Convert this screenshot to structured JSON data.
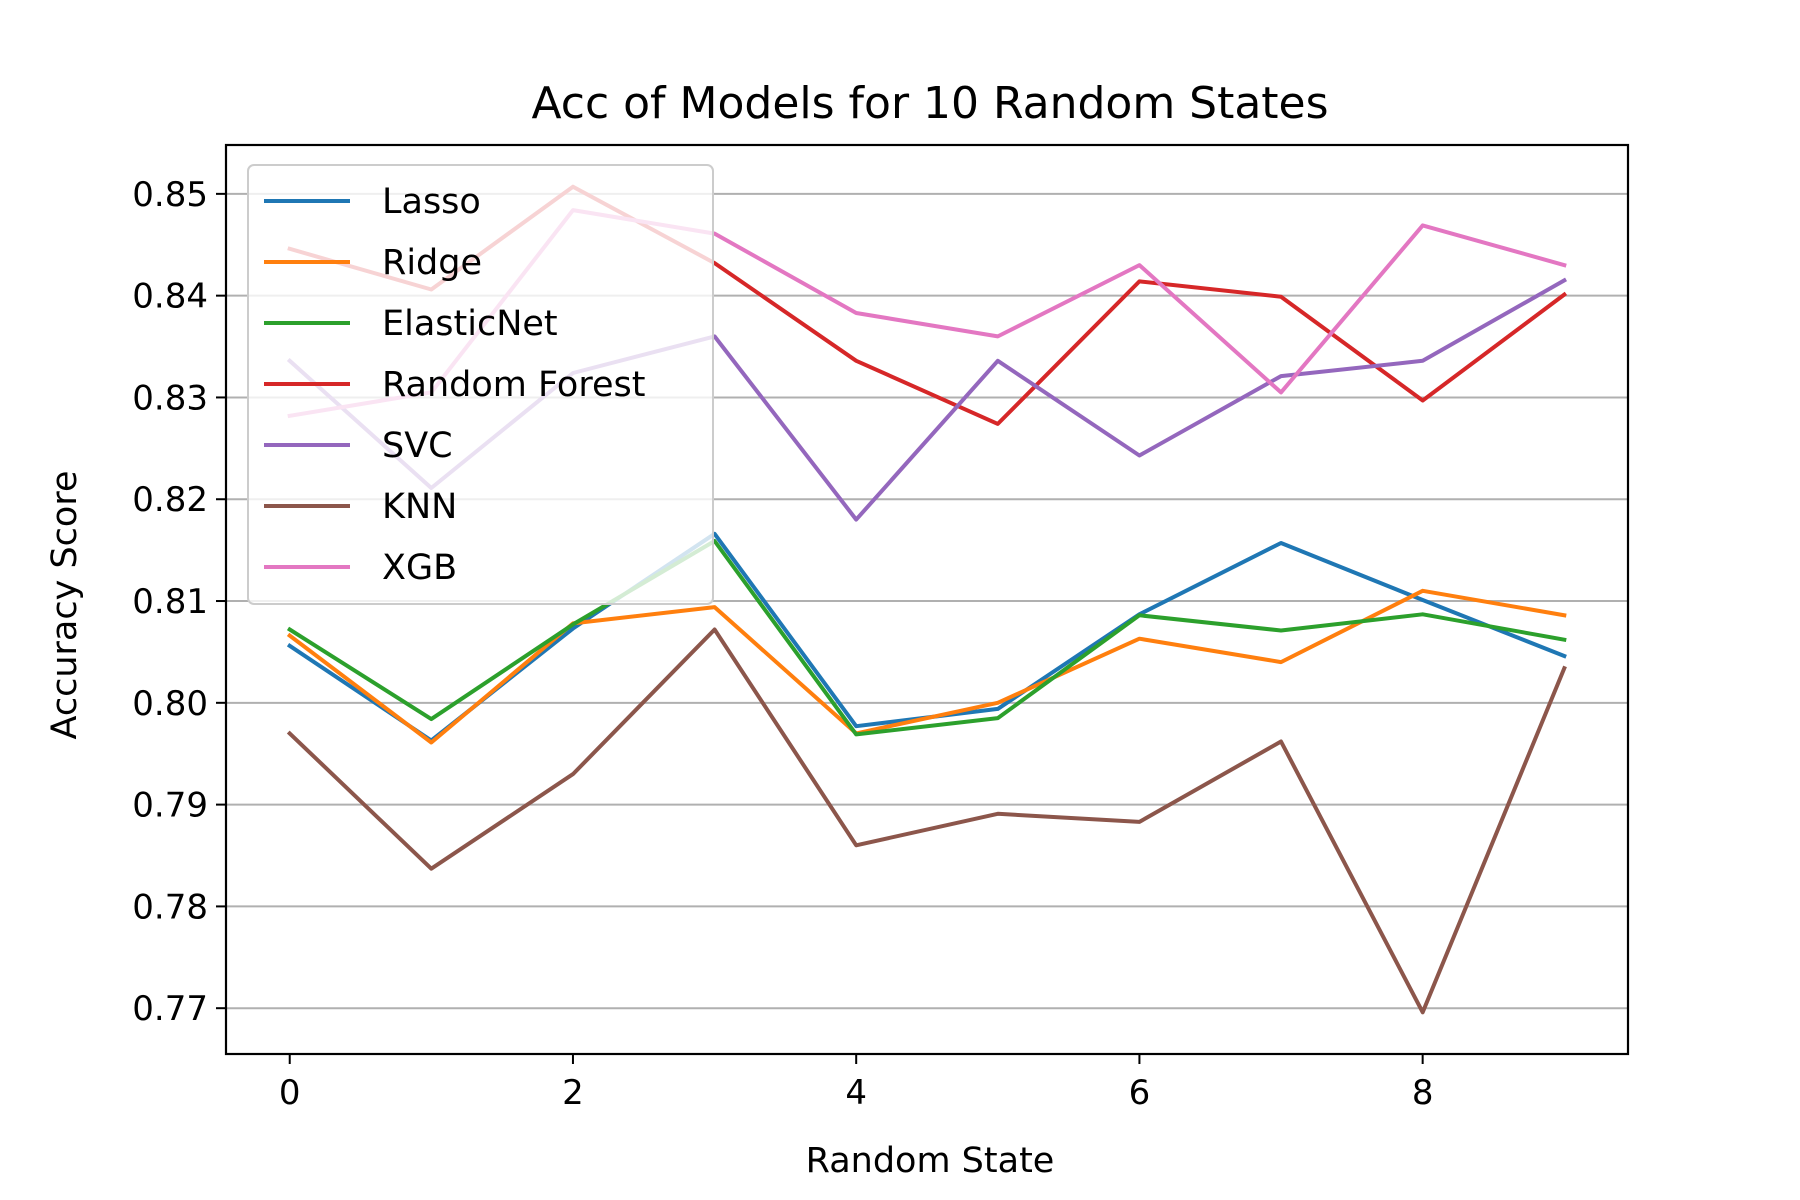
{
  "chart_data": {
    "type": "line",
    "title": "Acc of Models for 10 Random States",
    "xlabel": "Random State",
    "ylabel": "Accuracy Score",
    "x": [
      0,
      1,
      2,
      3,
      4,
      5,
      6,
      7,
      8,
      9
    ],
    "xlim": [
      -0.45,
      9.45
    ],
    "ylim": [
      0.7655,
      0.8548
    ],
    "xticks": [
      0,
      2,
      4,
      6,
      8
    ],
    "yticks": [
      0.77,
      0.78,
      0.79,
      0.8,
      0.81,
      0.82,
      0.83,
      0.84,
      0.85
    ],
    "ytick_labels": [
      "0.77",
      "0.78",
      "0.79",
      "0.80",
      "0.81",
      "0.82",
      "0.83",
      "0.84",
      "0.85"
    ],
    "grid": "y-only",
    "legend_position": "upper-left",
    "series": [
      {
        "name": "Lasso",
        "color": "#1f77b4",
        "values": [
          0.8056,
          0.7963,
          0.8073,
          0.8166,
          0.7977,
          0.7994,
          0.8087,
          0.8157,
          0.8101,
          0.8046
        ]
      },
      {
        "name": "Ridge",
        "color": "#ff7f0e",
        "values": [
          0.8066,
          0.7961,
          0.8078,
          0.8094,
          0.797,
          0.8,
          0.8063,
          0.804,
          0.811,
          0.8086
        ]
      },
      {
        "name": "ElasticNet",
        "color": "#2ca02c",
        "values": [
          0.8072,
          0.7984,
          0.8077,
          0.8159,
          0.7969,
          0.7985,
          0.8086,
          0.8071,
          0.8087,
          0.8062
        ]
      },
      {
        "name": "Random Forest",
        "color": "#d62728",
        "values": [
          0.8446,
          0.8406,
          0.8507,
          0.8432,
          0.8336,
          0.8274,
          0.8414,
          0.8399,
          0.8297,
          0.8401
        ]
      },
      {
        "name": "SVC",
        "color": "#9467bd",
        "values": [
          0.8336,
          0.8211,
          0.8324,
          0.836,
          0.818,
          0.8336,
          0.8243,
          0.8321,
          0.8336,
          0.8415
        ]
      },
      {
        "name": "KNN",
        "color": "#8c564b",
        "values": [
          0.797,
          0.7837,
          0.793,
          0.8072,
          0.786,
          0.7891,
          0.7883,
          0.7962,
          0.7696,
          0.8034
        ]
      },
      {
        "name": "XGB",
        "color": "#e377c2",
        "values": [
          0.8282,
          0.8305,
          0.8484,
          0.8461,
          0.8383,
          0.836,
          0.843,
          0.8305,
          0.8469,
          0.843
        ]
      }
    ]
  }
}
